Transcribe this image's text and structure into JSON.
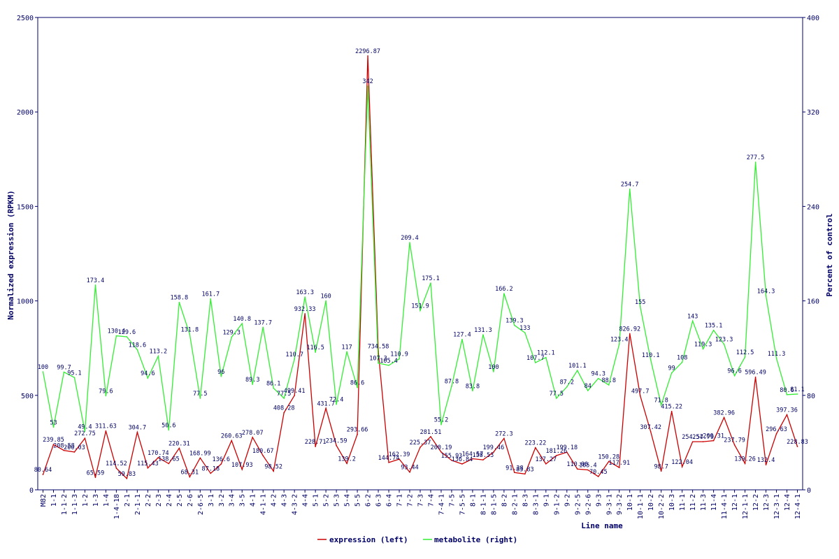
{
  "chart_data": {
    "type": "line",
    "xlabel": "Line name",
    "ylabel_left": "Normalized expression (RPKM)",
    "ylabel_right": "Percent of control",
    "ylim_left": [
      0,
      2500
    ],
    "ylim_right": [
      0,
      400
    ],
    "yticks_left": [
      0,
      500,
      1000,
      1500,
      2000,
      2500
    ],
    "yticks_right": [
      0,
      80,
      160,
      240,
      320,
      400
    ],
    "grid": false,
    "legend_position": "bottom-center",
    "categories": [
      "M82",
      "1-1",
      "1-1-2",
      "1-1-3",
      "1-2",
      "1-3",
      "1-4",
      "1-4-18",
      "2-1",
      "2-1-1",
      "2-2",
      "2-3",
      "2-4",
      "2-5",
      "2-6",
      "2-6-5",
      "3-1",
      "3-2",
      "3-4",
      "3-5",
      "4-1",
      "4-1-1",
      "4-2",
      "4-3",
      "4-3-2",
      "4-4",
      "5-1",
      "5-2",
      "5-3",
      "5-4",
      "5-5",
      "6-2",
      "6-3",
      "6-4",
      "7-1",
      "7-2",
      "7-3",
      "7-4",
      "7-4-1",
      "7-5",
      "7-5-5",
      "8-1",
      "8-1-1",
      "8-1-5",
      "8-2",
      "8-2-1",
      "8-3",
      "8-3-1",
      "9-1",
      "9-1-2",
      "9-2",
      "9-2-5",
      "9-2-6",
      "9-3",
      "9-3-1",
      "9-3-2",
      "10-1",
      "10-1-1",
      "10-2",
      "10-2-2",
      "10-3",
      "11-1",
      "11-2",
      "11-3",
      "11-4",
      "11-4-1",
      "12-1",
      "12-1-1",
      "12-2",
      "12-3",
      "12-3-1",
      "12-4",
      "12-4-1"
    ],
    "series": [
      {
        "name": "expression (left)",
        "axis": "left",
        "color": "#cc0000",
        "values": [
          80.64,
          239.85,
          208.58,
          200.03,
          272.75,
          65.59,
          311.63,
          114.52,
          59.83,
          304.7,
          115.43,
          170.74,
          138.65,
          220.31,
          68.31,
          168.99,
          87.18,
          136.6,
          260.63,
          107.93,
          278.07,
          180.67,
          98.52,
          408.28,
          499.41,
          932.33,
          228.71,
          431.7,
          234.59,
          139.2,
          293.66,
          2296.87,
          734.58,
          144.74,
          162.39,
          93.44,
          225.37,
          281.51,
          200.19,
          155.93,
          136.84,
          164.57,
          158.53,
          199.46,
          272.3,
          91.38,
          83.83,
          223.22,
          137.27,
          181.26,
          199.18,
          110.06,
          105.4,
          70.45,
          150.28,
          117.91,
          826.92,
          497.7,
          307.42,
          98.7,
          415.22,
          122.04,
          254.57,
          254.79,
          260.31,
          382.96,
          237.79,
          139.26,
          596.49,
          132.4,
          296.63,
          397.36,
          228.83
        ],
        "labels": [
          "80.64",
          "239.85",
          "208.58",
          "200.03",
          "272.75",
          "65.59",
          "311.63",
          "114.52",
          "59.83",
          "304.7",
          "115.43",
          "170.74",
          "138.65",
          "220.31",
          "68.31",
          "168.99",
          "87.18",
          "136.6",
          "260.63",
          "107.93",
          "278.07",
          "180.67",
          "98.52",
          "408.28",
          "499.41",
          "932.33",
          "228.71",
          "431.7",
          "234.59",
          "139.2",
          "293.66",
          "2296.87",
          "734.58",
          "144.74",
          "162.39",
          "93.44",
          "225.37",
          "281.51",
          "200.19",
          "155.93",
          "136.84",
          "164.57",
          "158.53",
          "199.46",
          "272.3",
          "91.38",
          "83.83",
          "223.22",
          "137.27",
          "181.26",
          "199.18",
          "110.06",
          "105.4",
          "70.45",
          "150.28",
          "117.91",
          "826.92",
          "497.7",
          "307.42",
          "98.7",
          "415.22",
          "122.04",
          "254.57",
          "254.79",
          "260.31",
          "382.96",
          "237.79",
          "139.26",
          "596.49",
          "132.4",
          "296.63",
          "397.36",
          "228.83"
        ]
      },
      {
        "name": "metabolite (right)",
        "axis": "right",
        "color": "#33ee33",
        "values": [
          100,
          53,
          99.7,
          95.1,
          49.4,
          173.4,
          79.6,
          130.4,
          129.6,
          118.6,
          94.6,
          113.2,
          50.6,
          158.8,
          131.8,
          77.5,
          161.7,
          96,
          129.3,
          140.8,
          89.3,
          137.7,
          86.1,
          77.5,
          110.7,
          163.3,
          116.5,
          160,
          72.4,
          117,
          86.6,
          342,
          107.3,
          105.4,
          110.9,
          209.4,
          151.9,
          175.1,
          55.2,
          87.8,
          127.4,
          83.8,
          131.3,
          100,
          166.2,
          139.3,
          133,
          107.7,
          112.1,
          77.5,
          87.2,
          101.1,
          84,
          94.3,
          88.8,
          123.4,
          254.7,
          155,
          110.1,
          71.8,
          99,
          108,
          143,
          119.3,
          135.1,
          123.3,
          96.6,
          112.5,
          277.5,
          164.3,
          111.3,
          80.6,
          81.1
        ],
        "labels": [
          "100",
          "53",
          "99.7",
          "95.1",
          "49.4",
          "173.4",
          "79.6",
          "130.4",
          "129.6",
          "118.6",
          "94.6",
          "113.2",
          "50.6",
          "158.8",
          "131.8",
          "77.5",
          "161.7",
          "96",
          "129.3",
          "140.8",
          "89.3",
          "137.7",
          "86.1",
          "77.5",
          "110.7",
          "163.3",
          "116.5",
          "160",
          "72.4",
          "117",
          "86.6",
          "342",
          "107.3",
          "105.4",
          "110.9",
          "209.4",
          "151.9",
          "175.1",
          "55.2",
          "87.8",
          "127.4",
          "83.8",
          "131.3",
          "100",
          "166.2",
          "139.3",
          "133",
          "107.7",
          "112.1",
          "77.5",
          "87.2",
          "101.1",
          "84",
          "94.3",
          "88.8",
          "123.4",
          "254.7",
          "155",
          "110.1",
          "71.8",
          "99",
          "108",
          "143",
          "119.3",
          "135.1",
          "123.3",
          "96.6",
          "112.5",
          "277.5",
          "164.3",
          "111.3",
          "80.6",
          "81.1"
        ]
      }
    ]
  }
}
